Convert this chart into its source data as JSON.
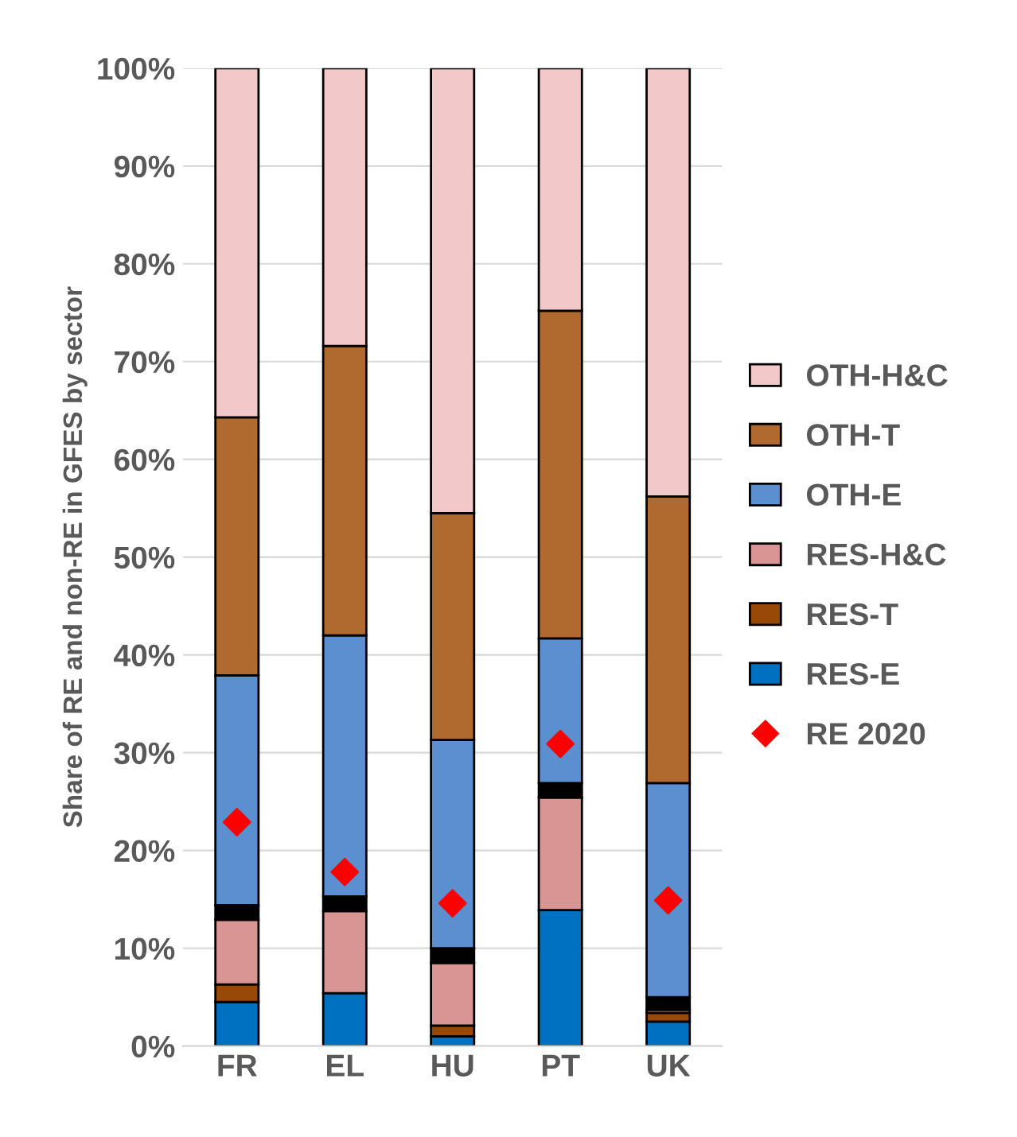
{
  "chart_data": {
    "type": "bar",
    "stacked": true,
    "ylabel": "Share of RE and non-RE in GFES by sector",
    "categories": [
      "FR",
      "EL",
      "HU",
      "PT",
      "UK"
    ],
    "series": [
      {
        "name": "RES-E",
        "color": "#0070c0",
        "values": [
          4.5,
          5.4,
          1.0,
          13.9,
          2.5
        ]
      },
      {
        "name": "RES-T",
        "color": "#984807",
        "values": [
          1.8,
          null,
          1.1,
          null,
          0.9
        ]
      },
      {
        "name": "RES-H&C",
        "color": "#d99594",
        "values": [
          6.6,
          8.4,
          6.4,
          11.5,
          0.3
        ]
      },
      {
        "color": "#000000",
        "values": [
          1.5,
          1.5,
          1.5,
          1.5,
          1.3
        ]
      },
      {
        "name": "OTH-E",
        "color": "#5b8fd0",
        "values": [
          23.5,
          26.7,
          21.3,
          14.8,
          21.9
        ]
      },
      {
        "name": "OTH-T",
        "color": "#b0692e",
        "values": [
          26.4,
          29.6,
          23.2,
          33.5,
          29.3
        ]
      },
      {
        "name": "OTH-H&C",
        "color": "#f2c8c8",
        "values": [
          35.7,
          28.4,
          45.5,
          24.8,
          43.8
        ]
      },
      {
        "name": "RE 2020",
        "type": "scatter",
        "marker": "diamond",
        "color": "#ff0000",
        "values": [
          22.9,
          17.8,
          14.6,
          30.9,
          14.9
        ]
      }
    ],
    "ylim": [
      0,
      100
    ],
    "yticks": [
      {
        "value": 0,
        "label": "0%"
      },
      {
        "value": 10,
        "label": "10%"
      },
      {
        "value": 20,
        "label": "20%"
      },
      {
        "value": 30,
        "label": "30%"
      },
      {
        "value": 40,
        "label": "40%"
      },
      {
        "value": 50,
        "label": "50%"
      },
      {
        "value": 60,
        "label": "60%"
      },
      {
        "value": 70,
        "label": "70%"
      },
      {
        "value": 80,
        "label": "80%"
      },
      {
        "value": 90,
        "label": "90%"
      },
      {
        "value": 100,
        "label": "100%"
      }
    ],
    "grid": "y",
    "legend": "right"
  }
}
